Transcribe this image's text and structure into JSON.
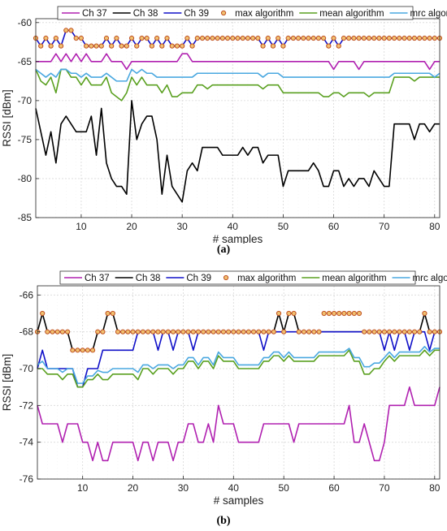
{
  "chart_data": [
    {
      "type": "line",
      "caption": "(a)",
      "xlabel": "# samples",
      "ylabel": "RSSI [dBm]",
      "xlim": [
        1,
        81
      ],
      "ylim": [
        -85,
        -59.5
      ],
      "xticks": [
        10,
        20,
        30,
        40,
        50,
        60,
        70,
        80
      ],
      "yticks": [
        -85,
        -80,
        -75,
        -70,
        -65,
        -60
      ],
      "grid": true,
      "legend": "top",
      "series": [
        {
          "name": "Ch 37",
          "color": "#b020b0",
          "marker": "none",
          "values": [
            -65,
            -65,
            -65,
            -65,
            -64,
            -65,
            -64,
            -65,
            -64,
            -65,
            -64,
            -65,
            -65,
            -65,
            -64,
            -65,
            -65,
            -65,
            -66,
            -65,
            -65,
            -65,
            -65,
            -65,
            -65,
            -65,
            -65,
            -65,
            -65,
            -64,
            -64,
            -65,
            -65,
            -65,
            -65,
            -65,
            -65,
            -65,
            -65,
            -65,
            -65,
            -65,
            -65,
            -65,
            -65,
            -65,
            -65,
            -65,
            -65,
            -65,
            -65,
            -65,
            -65,
            -65,
            -65,
            -65,
            -65,
            -65,
            -65,
            -66,
            -65,
            -65,
            -65,
            -65,
            -66,
            -65,
            -65,
            -65,
            -65,
            -65,
            -65,
            -65,
            -65,
            -65,
            -65,
            -65,
            -65,
            -65,
            -66,
            -65,
            -65
          ]
        },
        {
          "name": "Ch 38",
          "color": "#000000",
          "marker": "none",
          "values": [
            -71,
            -74,
            -77,
            -74,
            -78,
            -73,
            -72,
            -73,
            -74,
            -74,
            -74,
            -72,
            -77,
            -71,
            -78,
            -80,
            -81,
            -81,
            -82,
            -70,
            -75,
            -73,
            -72,
            -72,
            -75,
            -82,
            -77,
            -81,
            -82,
            -83,
            -79,
            -78,
            -79,
            -76,
            -76,
            -76,
            -76,
            -77,
            -77,
            -77,
            -77,
            -76,
            -77,
            -76,
            -76,
            -78,
            -77,
            -77,
            -77,
            -81,
            -79,
            -79,
            -79,
            -79,
            -79,
            -78,
            -79,
            -81,
            -81,
            -79,
            -79,
            -81,
            -80,
            -81,
            -80,
            -80,
            -81,
            -79,
            -80,
            -81,
            -81,
            -73,
            -73,
            -73,
            -73,
            -75,
            -73,
            -73,
            -74,
            -73,
            -73
          ]
        },
        {
          "name": "Ch 39",
          "color": "#1010c8",
          "marker": "none",
          "values": [
            -62,
            -63,
            -62,
            -63,
            -62,
            -63,
            -61,
            -61,
            -62,
            -62,
            -63,
            -63,
            -63,
            -63,
            -62,
            -63,
            -62,
            -63,
            -63,
            -62,
            -63,
            -62,
            -62,
            -63,
            -62,
            -63,
            -62,
            -63,
            -63,
            -63,
            -62,
            -63,
            -62,
            -62,
            -62,
            -62,
            -62,
            -62,
            -62,
            -62,
            -62,
            -62,
            -62,
            -62,
            -62,
            -63,
            -62,
            -63,
            -62,
            -63,
            -62,
            -62,
            -62,
            -62,
            -62,
            -62,
            -62,
            -62,
            -63,
            -62,
            -63,
            -62,
            -62,
            -62,
            -62,
            -62,
            -62,
            -62,
            -62,
            -62,
            -62,
            -62,
            -62,
            -62,
            -62,
            -62,
            -62,
            -62,
            -62,
            -62,
            -62
          ]
        },
        {
          "name": "max algorithm",
          "color": "#c05020",
          "fill": "#f0c070",
          "marker": "circle",
          "values": [
            -62,
            -63,
            -62,
            -63,
            -62,
            -63,
            -61,
            -61,
            -62,
            -62,
            -63,
            -63,
            -63,
            -63,
            -62,
            -63,
            -62,
            -63,
            -63,
            -62,
            -63,
            -62,
            -62,
            -63,
            -62,
            -63,
            -62,
            -63,
            -63,
            -63,
            -62,
            -63,
            -62,
            -62,
            -62,
            -62,
            -62,
            -62,
            -62,
            -62,
            -62,
            -62,
            -62,
            -62,
            -62,
            -63,
            -62,
            -63,
            -62,
            -63,
            -62,
            -62,
            -62,
            -62,
            -62,
            -62,
            -62,
            -62,
            -63,
            -62,
            -63,
            -62,
            -62,
            -62,
            -62,
            -62,
            -62,
            -62,
            -62,
            -62,
            -62,
            -62,
            -62,
            -62,
            -62,
            -62,
            -62,
            -62,
            -62,
            -62,
            -62
          ]
        },
        {
          "name": "mean algorithm",
          "color": "#5aa020",
          "marker": "none",
          "values": [
            -66,
            -67.5,
            -68,
            -67,
            -69,
            -66,
            -66,
            -67,
            -67,
            -68,
            -67,
            -68,
            -68,
            -68,
            -67,
            -69,
            -69.5,
            -70,
            -69,
            -67,
            -68,
            -67,
            -68,
            -68,
            -68,
            -69,
            -68,
            -69.5,
            -69.5,
            -69,
            -69,
            -69,
            -68,
            -68,
            -68.5,
            -68,
            -68,
            -68,
            -68,
            -68,
            -68,
            -68,
            -68,
            -68,
            -68,
            -68.5,
            -68,
            -68,
            -68,
            -69,
            -69,
            -69,
            -69,
            -69,
            -69,
            -69,
            -69,
            -69.5,
            -69.5,
            -69,
            -69,
            -69.5,
            -69,
            -69,
            -69,
            -69,
            -69.5,
            -69,
            -69,
            -69,
            -69,
            -67,
            -67,
            -67,
            -67,
            -67.5,
            -67,
            -67,
            -67,
            -67,
            -67
          ]
        },
        {
          "name": "mrc algorithm",
          "color": "#4aa8e0",
          "marker": "none",
          "values": [
            -66,
            -66.5,
            -67,
            -66.5,
            -67,
            -66,
            -66,
            -66.5,
            -66.5,
            -67,
            -66.5,
            -67,
            -67,
            -67,
            -66.5,
            -67,
            -67.5,
            -67.5,
            -67.5,
            -66,
            -66.5,
            -66,
            -66.5,
            -66.5,
            -67,
            -67,
            -67,
            -67,
            -67,
            -67,
            -67,
            -67,
            -66.5,
            -66.5,
            -66.5,
            -66.5,
            -66.5,
            -66.5,
            -66.5,
            -66.5,
            -66.5,
            -66.5,
            -66.5,
            -66.5,
            -66.5,
            -67,
            -66.5,
            -66.5,
            -66.5,
            -67,
            -67,
            -67,
            -67,
            -67,
            -67,
            -67,
            -67,
            -67,
            -67,
            -67,
            -67,
            -67,
            -67,
            -67,
            -67,
            -67,
            -67,
            -67,
            -67,
            -67,
            -67,
            -66.5,
            -66.5,
            -66.5,
            -66.5,
            -66.5,
            -66.5,
            -66.5,
            -66.5,
            -67,
            -66.5
          ]
        }
      ]
    },
    {
      "type": "line",
      "caption": "(b)",
      "xlabel": "# samples",
      "ylabel": "RSSI [dBm]",
      "xlim": [
        1,
        81
      ],
      "ylim": [
        -76,
        -65.5
      ],
      "xticks": [
        10,
        20,
        30,
        40,
        50,
        60,
        70,
        80
      ],
      "yticks": [
        -76,
        -74,
        -72,
        -70,
        -68,
        -66
      ],
      "grid": true,
      "legend": "top",
      "series": [
        {
          "name": "Ch 37",
          "color": "#b020b0",
          "marker": "none",
          "values": [
            -72,
            -73,
            -73,
            -73,
            -73,
            -74,
            -73,
            -73,
            -73,
            -74,
            -74,
            -75,
            -74,
            -75,
            -75,
            -74,
            -74,
            -74,
            -74,
            -74,
            -75,
            -74,
            -74,
            -75,
            -74,
            -74,
            -74,
            -75,
            -74,
            -74,
            -73,
            -73,
            -74,
            -74,
            -73,
            -74,
            -72,
            -73,
            -73,
            -73,
            -74,
            -74,
            -74,
            -74,
            -74,
            -73,
            -73,
            -73,
            -73,
            -73,
            -73,
            -74,
            -73,
            -73,
            -73,
            -73,
            -73,
            -73,
            -73,
            -73,
            -73,
            -73,
            -72,
            -74,
            -74,
            -73,
            -74,
            -75,
            -75,
            -74,
            -72,
            -72,
            -72,
            -72,
            -71,
            -72,
            -72,
            -72,
            -72,
            -72,
            -71
          ]
        },
        {
          "name": "Ch 38",
          "color": "#000000",
          "marker": "none",
          "values": [
            -68,
            -67,
            -68,
            -68,
            -68,
            -68,
            -68,
            -69,
            -69,
            -69,
            -69,
            -69,
            -68,
            -68,
            -67,
            -67,
            -68,
            -68,
            -68,
            -68,
            -68,
            -68,
            -68,
            -68,
            -68,
            -68,
            -68,
            -68,
            -68,
            -68,
            -68,
            -68,
            -68,
            -68,
            -68,
            -68,
            -68,
            -68,
            -68,
            -68,
            -68,
            -68,
            -68,
            -68,
            -68,
            -68,
            -68,
            -68,
            -67,
            -68,
            -67,
            -67,
            -68,
            -68,
            -68,
            -68,
            -68,
            -68,
            -68,
            -68,
            -68,
            -68,
            -68,
            -68,
            -68,
            -68,
            -68,
            -68,
            -68,
            -68,
            -68,
            -68,
            -68,
            -68,
            -68,
            -68,
            -68,
            -67,
            -68,
            -68,
            -68
          ]
        },
        {
          "name": "Ch 39",
          "color": "#1010c8",
          "marker": "none",
          "values": [
            -70,
            -69,
            -70,
            -70,
            -70,
            -70,
            -70,
            -70,
            -71,
            -71,
            -70,
            -70,
            -70,
            -69,
            -69,
            -69,
            -69,
            -69,
            -69,
            -69,
            -68,
            -68,
            -68,
            -68,
            -69,
            -68,
            -68,
            -69,
            -68,
            -68,
            -68,
            -69,
            -68,
            -68,
            -68,
            -68,
            -68,
            -68,
            -68,
            -68,
            -68,
            -68,
            -68,
            -68,
            -68,
            -69,
            -68,
            -68,
            -68,
            -68,
            -68,
            -68,
            -68,
            -68,
            -68,
            -68,
            -68,
            -68,
            -68,
            -68,
            -68,
            -68,
            -68,
            -68,
            -68,
            -68,
            -68,
            -68,
            -68,
            -69,
            -68,
            -69,
            -68,
            -68,
            -69,
            -68,
            -68,
            -68,
            -69,
            -68,
            -68
          ]
        },
        {
          "name": "max algorithm",
          "color": "#c05020",
          "fill": "#f0c070",
          "marker": "circle",
          "values": [
            -68,
            -67,
            -68,
            -68,
            -68,
            -68,
            -68,
            -69,
            -69,
            -69,
            -69,
            -69,
            -68,
            -68,
            -67,
            -67,
            -68,
            -68,
            -68,
            -68,
            -68,
            -68,
            -68,
            -68,
            -68,
            -68,
            -68,
            -68,
            -68,
            -68,
            -68,
            -68,
            -68,
            -68,
            -68,
            -68,
            -68,
            -68,
            -68,
            -68,
            -68,
            -68,
            -68,
            -68,
            -68,
            -68,
            -68,
            -68,
            -67,
            -68,
            -67,
            -67,
            -68,
            -68,
            -68,
            -68,
            -68,
            -67,
            -67,
            -67,
            -67,
            -67,
            -67,
            -67,
            -67,
            -68,
            -68,
            -68,
            -68,
            -68,
            -68,
            -68,
            -68,
            -68,
            -68,
            -68,
            -68,
            -67,
            -68,
            -68,
            -68
          ]
        },
        {
          "name": "mean algorithm",
          "color": "#5aa020",
          "marker": "none",
          "values": [
            -70,
            -70,
            -70.3,
            -70.3,
            -70.3,
            -70.6,
            -70.3,
            -70.3,
            -71,
            -71,
            -70.6,
            -70.6,
            -70.3,
            -70.6,
            -70.6,
            -70.3,
            -70.3,
            -70.3,
            -70.3,
            -70.3,
            -70.6,
            -70,
            -70,
            -70.3,
            -70,
            -70,
            -70,
            -70.3,
            -70,
            -70,
            -69.6,
            -69.6,
            -70,
            -69.6,
            -69.6,
            -70,
            -69.3,
            -69.6,
            -69.6,
            -69.6,
            -70,
            -70,
            -70,
            -70,
            -70,
            -69.6,
            -69.6,
            -69.3,
            -69.3,
            -69.6,
            -69.3,
            -69.6,
            -69.6,
            -69.6,
            -69.6,
            -69.6,
            -69.3,
            -69.3,
            -69.3,
            -69.3,
            -69.3,
            -69.3,
            -69,
            -69.6,
            -69.6,
            -70.3,
            -70.3,
            -70,
            -70,
            -69.6,
            -69.3,
            -69.6,
            -69.3,
            -69.3,
            -69.3,
            -69.3,
            -69.3,
            -69,
            -69.3,
            -69,
            -69
          ]
        },
        {
          "name": "mrc algorithm",
          "color": "#4aa8e0",
          "marker": "none",
          "values": [
            -69.8,
            -69.6,
            -70,
            -70,
            -70,
            -70.2,
            -70,
            -70,
            -70.8,
            -70.8,
            -70.4,
            -70.4,
            -70.1,
            -70.2,
            -70.2,
            -70,
            -70,
            -70,
            -70,
            -70,
            -70.2,
            -69.8,
            -69.8,
            -70,
            -69.8,
            -69.8,
            -69.8,
            -70,
            -69.8,
            -69.8,
            -69.4,
            -69.4,
            -69.8,
            -69.4,
            -69.4,
            -69.8,
            -69.1,
            -69.4,
            -69.4,
            -69.4,
            -69.8,
            -69.8,
            -69.8,
            -69.8,
            -69.8,
            -69.4,
            -69.4,
            -69.1,
            -69.1,
            -69.4,
            -69.1,
            -69.4,
            -69.4,
            -69.4,
            -69.4,
            -69.4,
            -69.1,
            -69.1,
            -69.1,
            -69.1,
            -69.1,
            -69.1,
            -68.9,
            -69.4,
            -69.4,
            -69.9,
            -69.9,
            -69.7,
            -69.7,
            -69.4,
            -69.1,
            -69.4,
            -69.1,
            -69.1,
            -69.1,
            -69.1,
            -69.1,
            -68.8,
            -69.1,
            -68.9,
            -68.9
          ]
        }
      ]
    }
  ]
}
